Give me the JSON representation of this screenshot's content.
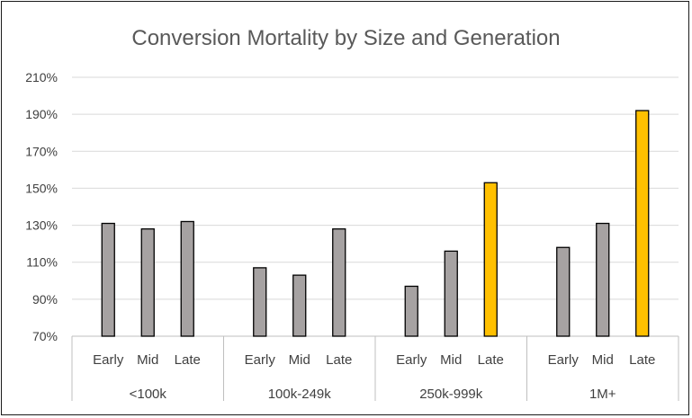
{
  "chart_data": {
    "type": "bar",
    "title": "Conversion Mortality by Size and Generation",
    "xlabel": "",
    "ylabel": "",
    "ylim": [
      70,
      210
    ],
    "y_ticks": [
      "70%",
      "90%",
      "110%",
      "130%",
      "150%",
      "170%",
      "190%",
      "210%"
    ],
    "y_tick_values": [
      70,
      90,
      110,
      130,
      150,
      170,
      190,
      210
    ],
    "grid": true,
    "legend": "none",
    "groups": [
      {
        "name": "<100k",
        "bars": [
          {
            "label": "Early",
            "value": 131
          },
          {
            "label": "Mid",
            "value": 128
          },
          {
            "label": "Late",
            "value": 132
          }
        ]
      },
      {
        "name": "100k-249k",
        "bars": [
          {
            "label": "Early",
            "value": 107
          },
          {
            "label": "Mid",
            "value": 103
          },
          {
            "label": "Late",
            "value": 128
          }
        ]
      },
      {
        "name": "250k-999k",
        "bars": [
          {
            "label": "Early",
            "value": 97
          },
          {
            "label": "Mid",
            "value": 116
          },
          {
            "label": "Late",
            "value": 153,
            "highlight": true
          }
        ]
      },
      {
        "name": "1M+",
        "bars": [
          {
            "label": "Early",
            "value": 118
          },
          {
            "label": "Mid",
            "value": 131
          },
          {
            "label": "Late",
            "value": 192,
            "highlight": true
          }
        ]
      }
    ],
    "colors": {
      "bar": "#a6a2a2",
      "highlight": "#ffc000",
      "outline": "#000000",
      "grid": "#d9d9d9",
      "axis": "#bfbfbf"
    }
  }
}
